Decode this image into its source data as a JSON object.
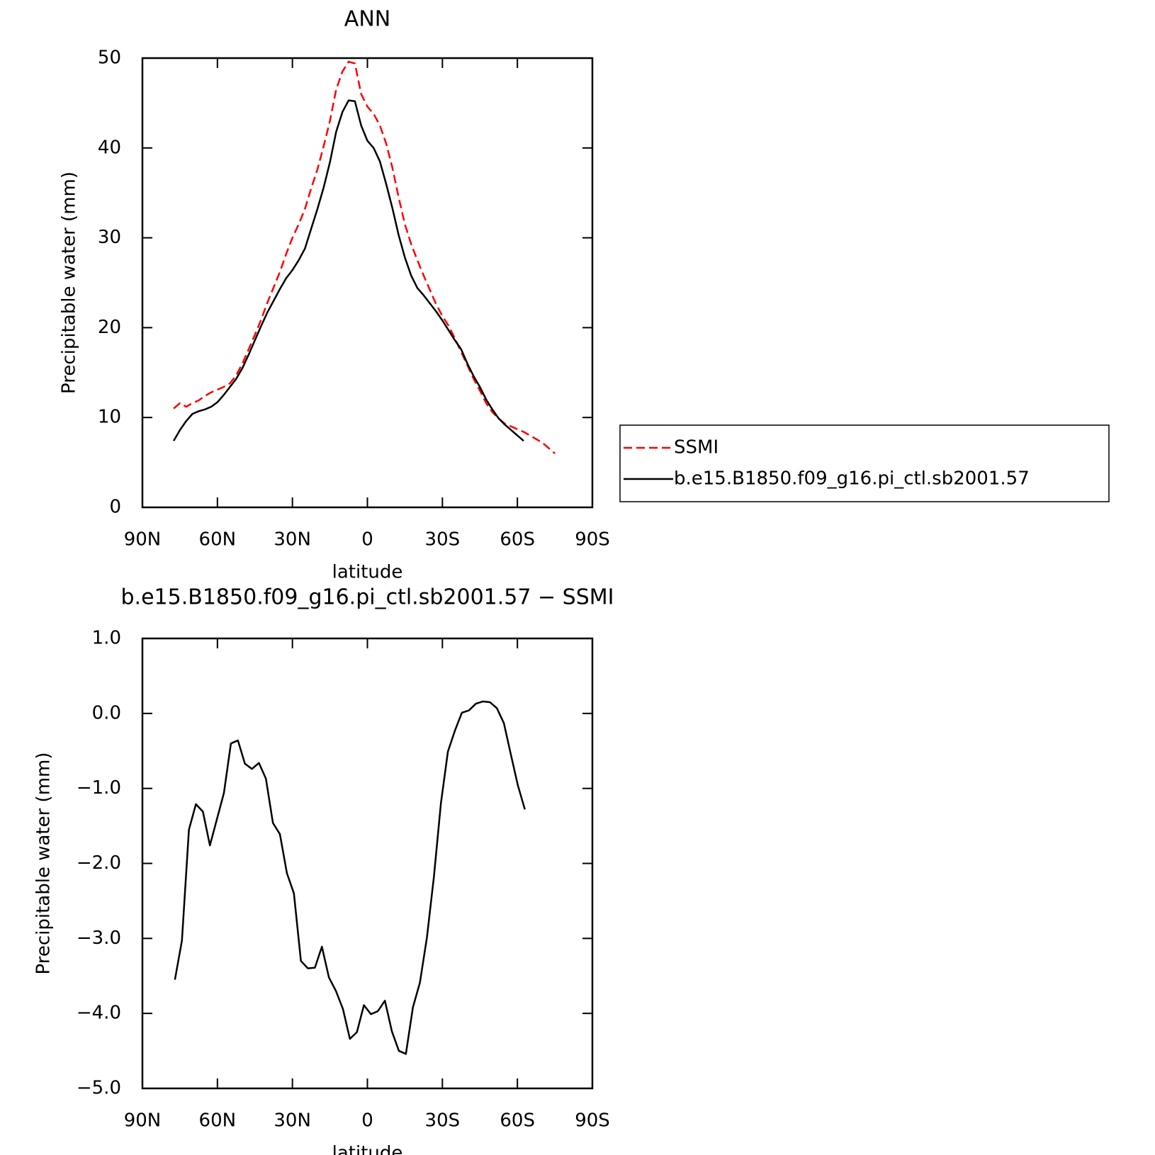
{
  "chart_data": [
    {
      "type": "line",
      "title": "ANN",
      "xlabel": "latitude",
      "ylabel": "Precipitable water (mm)",
      "x": [
        77.5,
        75,
        72.5,
        70,
        67.5,
        65,
        62.5,
        60,
        57.5,
        55,
        52.5,
        50,
        47.5,
        45,
        42.5,
        40,
        37.5,
        35,
        32.5,
        30,
        27.5,
        25,
        22.5,
        20,
        17.5,
        15,
        12.5,
        10,
        7.5,
        5,
        2.5,
        0,
        -2.5,
        -5,
        -7.5,
        -10,
        -12.5,
        -15,
        -17.5,
        -20,
        -22.5,
        -25,
        -27.5,
        -30,
        -32.5,
        -35,
        -37.5,
        -40,
        -42.5,
        -45,
        -47.5,
        -50,
        -52.5,
        -55,
        -57.5,
        -60,
        -62.5,
        -65,
        -67.5,
        -70,
        -72.5,
        -75
      ],
      "series": [
        {
          "name": "SSMI",
          "color": "#ff0000",
          "style": "dashed",
          "values": [
            11.0,
            11.6,
            11.2,
            11.6,
            11.9,
            12.4,
            12.8,
            13.1,
            13.4,
            13.8,
            14.7,
            16.0,
            17.6,
            19.2,
            20.9,
            22.8,
            24.5,
            26.2,
            28.2,
            30.0,
            31.5,
            33.2,
            35.5,
            37.6,
            40.2,
            43.0,
            46.5,
            48.5,
            49.6,
            49.4,
            46.0,
            44.6,
            43.8,
            42.5,
            40.5,
            37.8,
            34.5,
            31.5,
            29.3,
            27.5,
            25.8,
            24.2,
            22.6,
            21.3,
            20.2,
            18.8,
            17.3,
            15.8,
            14.3,
            13.0,
            11.6,
            10.6,
            9.9,
            9.3,
            9.0,
            8.7,
            8.4,
            8.0,
            7.6,
            7.2,
            6.6,
            6.0
          ]
        },
        {
          "name": "b.e15.B1850.f09_g16.pi_ctl.sb2001.57",
          "color": "#000000",
          "style": "solid",
          "values": [
            7.4,
            8.6,
            9.6,
            10.4,
            10.7,
            10.9,
            11.2,
            11.7,
            12.5,
            13.4,
            14.3,
            15.5,
            17.0,
            18.6,
            20.2,
            21.7,
            23.0,
            24.3,
            25.5,
            26.4,
            27.5,
            28.8,
            31.0,
            33.2,
            35.6,
            38.4,
            41.8,
            44.0,
            45.3,
            45.2,
            42.5,
            40.8,
            40.0,
            38.5,
            36.0,
            33.3,
            30.3,
            27.8,
            25.8,
            24.4,
            23.6,
            22.7,
            21.8,
            20.8,
            19.7,
            18.6,
            17.6,
            16.0,
            14.6,
            13.4,
            12.0,
            10.9,
            9.9,
            9.2,
            8.6,
            8.0,
            7.4,
            null,
            null,
            null,
            null,
            null
          ]
        }
      ],
      "xlim": [
        90,
        -90
      ],
      "xticks": [
        {
          "value": 90,
          "label": "90N"
        },
        {
          "value": 60,
          "label": "60N"
        },
        {
          "value": 30,
          "label": "30N"
        },
        0,
        {
          "value": -30,
          "label": "30S"
        },
        {
          "value": -60,
          "label": "60S"
        },
        {
          "value": -90,
          "label": "90S"
        }
      ],
      "ylim": [
        0,
        50
      ],
      "yticks": [
        0,
        10,
        20,
        30,
        40,
        50
      ],
      "legend": "right"
    },
    {
      "type": "line",
      "title": "b.e15.B1850.f09_g16.pi_ctl.sb2001.57 − SSMI",
      "xlabel": "latitude",
      "ylabel": "Precipitable water (mm)",
      "x": [
        77,
        74.2,
        71.4,
        68.6,
        65.8,
        63,
        60.2,
        57.4,
        54.6,
        51.8,
        49,
        46.2,
        43.4,
        40.6,
        37.8,
        35,
        32.2,
        29.4,
        26.6,
        23.8,
        21,
        18.2,
        15.4,
        12.6,
        9.8,
        7,
        4.2,
        1.4,
        -1.4,
        -4.2,
        -7,
        -9.8,
        -12.6,
        -15.4,
        -18.2,
        -21,
        -23.8,
        -26.6,
        -29.4,
        -32.2,
        -35,
        -37.8,
        -40.6,
        -43.4,
        -46.2,
        -49,
        -51.8,
        -54.6,
        -57.4,
        -60.2,
        -63
      ],
      "color": "#000000",
      "values": [
        -3.55,
        -3.03,
        -1.55,
        -1.21,
        -1.31,
        -1.76,
        -1.41,
        -1.06,
        -0.4,
        -0.36,
        -0.67,
        -0.74,
        -0.66,
        -0.87,
        -1.46,
        -1.61,
        -2.13,
        -2.4,
        -3.3,
        -3.4,
        -3.39,
        -3.11,
        -3.52,
        -3.7,
        -3.94,
        -4.34,
        -4.25,
        -3.89,
        -4.01,
        -3.97,
        -3.83,
        -4.24,
        -4.5,
        -4.54,
        -3.92,
        -3.59,
        -2.99,
        -2.18,
        -1.2,
        -0.51,
        -0.23,
        0.01,
        0.04,
        0.13,
        0.16,
        0.15,
        0.07,
        -0.13,
        -0.55,
        -0.96,
        -1.28
      ],
      "xlim": [
        90,
        -90
      ],
      "xticks": [
        {
          "value": 90,
          "label": "90N"
        },
        {
          "value": 60,
          "label": "60N"
        },
        {
          "value": 30,
          "label": "30N"
        },
        0,
        {
          "value": -30,
          "label": "30S"
        },
        {
          "value": -60,
          "label": "60S"
        },
        {
          "value": -90,
          "label": "90S"
        }
      ],
      "ylim": [
        -5,
        1
      ],
      "yticks": [
        {
          "value": -5,
          "label": "−5.0"
        },
        {
          "value": -4,
          "label": "−4.0"
        },
        {
          "value": -3,
          "label": "−3.0"
        },
        {
          "value": -2,
          "label": "−2.0"
        },
        {
          "value": -1,
          "label": "−1.0"
        },
        {
          "value": 0,
          "label": "0.0"
        },
        {
          "value": 1,
          "label": "1.0"
        }
      ]
    }
  ]
}
